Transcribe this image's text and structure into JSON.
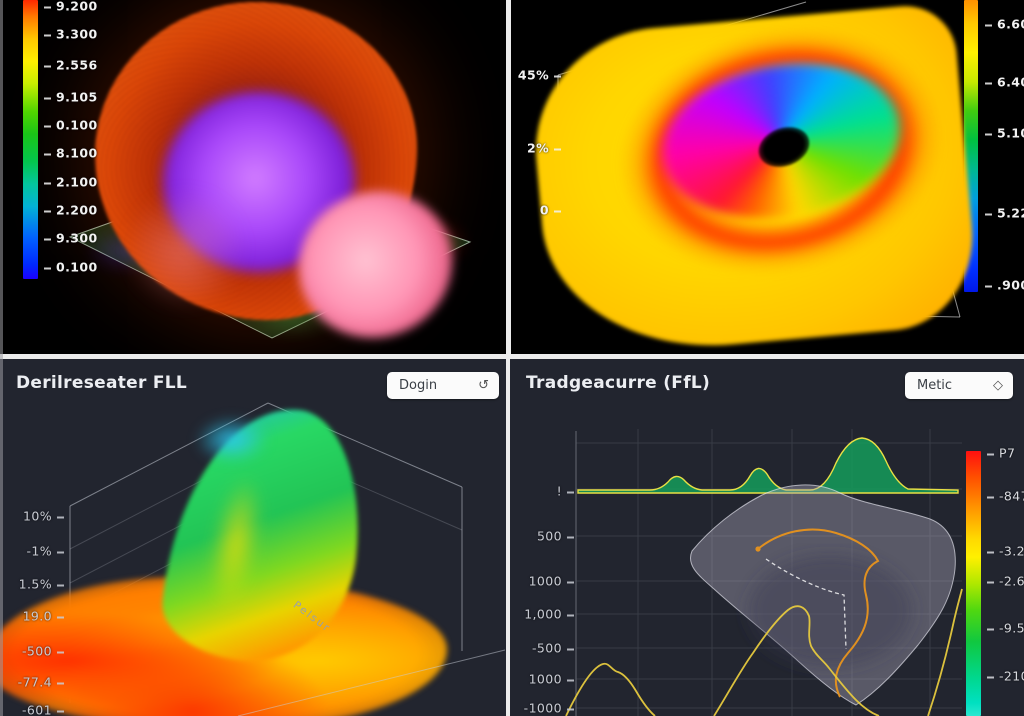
{
  "panels": {
    "top_left": {
      "colorbar_ticks": [
        "9.200",
        "3.300",
        "2.556",
        "9.105",
        "0.100",
        "8.100",
        "2.100",
        "2.200",
        "9.300",
        "0.100"
      ]
    },
    "top_right": {
      "y_ticks": [
        "45%",
        "2%",
        "0"
      ],
      "colorbar_ticks": [
        "6.60",
        "6.40",
        "5.10",
        "5.22",
        ".900"
      ]
    },
    "bottom_left": {
      "title": "Derilreseater FLL",
      "dropdown_value": "Dogin",
      "dropdown_icon": "↺",
      "y_ticks": [
        "10%",
        "-1%",
        "1.5%",
        "19.0",
        "-500",
        "-77.4",
        "-601"
      ],
      "axis_label": "Pelsur"
    },
    "bottom_right": {
      "title": "Tradgeacurre (FfL)",
      "dropdown_value": "Metic",
      "dropdown_icon": "◇",
      "y_ticks": [
        "!",
        "500",
        "1000",
        "1,000",
        "-500",
        "1000",
        "-1000"
      ],
      "colorbar_ticks": [
        "P7",
        "-847",
        "-3.23",
        "-2.60",
        "-9.50",
        "-210"
      ]
    }
  },
  "chart_data": [
    {
      "type": "heatmap",
      "panel": "top-left",
      "subtype": "3d-surface",
      "description": "Orange-red torus shell with violet glowing core and pink lobe, on translucent green base plane, black background",
      "colorbar_ticks": [
        "9.200",
        "3.300",
        "2.556",
        "9.105",
        "0.100",
        "8.100",
        "2.100",
        "2.200",
        "9.300",
        "0.100"
      ],
      "colorbar_colors_top_to_bottom": [
        "#ff2800",
        "#fff000",
        "#18c818",
        "#00c8a0",
        "#1c00ff"
      ]
    },
    {
      "type": "heatmap",
      "panel": "top-right",
      "subtype": "3d-surface",
      "description": "Yellow draped sheet with rainbow spiral vortex (red, magenta, blue, cyan, green) around a black center hole",
      "y_ticks": [
        "45%",
        "2%",
        "0"
      ],
      "colorbar_ticks": [
        "6.60",
        "6.40",
        "5.10",
        "5.22",
        ".900"
      ],
      "colorbar_colors_top_to_bottom": [
        "#ff9000",
        "#fff000",
        "#00c040",
        "#0064ff",
        "#0018e8"
      ]
    },
    {
      "type": "heatmap",
      "panel": "bottom-left",
      "subtype": "3d-surface",
      "title": "Derilreseater FLL",
      "description": "Turbulent orange-red base surface with cyan-green curved crest rising inside a wireframe box",
      "y_ticks": [
        "10%",
        "-1%",
        "1.5%",
        "19.0",
        "-500",
        "-77.4",
        "-601"
      ],
      "axis_label": "Pelsur"
    },
    {
      "type": "area",
      "panel": "bottom-right",
      "title": "Tradgeacurre (FfL)",
      "y_ticks": [
        "!",
        "500",
        "1000",
        "1,000",
        "-500",
        "1000",
        "-1000"
      ],
      "colorbar_ticks": [
        "P7",
        "-847",
        "-3.23",
        "-2.60",
        "-9.50",
        "-210"
      ],
      "grid": true,
      "series": [
        {
          "name": "green area bumps (baseline at '!' gridline)",
          "style": "area",
          "color": "#14985a",
          "points_xnorm_heightpx": [
            [
              0.0,
              0
            ],
            [
              0.22,
              0
            ],
            [
              0.28,
              18
            ],
            [
              0.33,
              0
            ],
            [
              0.45,
              0
            ],
            [
              0.5,
              28
            ],
            [
              0.56,
              0
            ],
            [
              0.66,
              0
            ],
            [
              0.78,
              52
            ],
            [
              0.9,
              0
            ],
            [
              1.0,
              0
            ]
          ]
        },
        {
          "name": "yellow line",
          "style": "line",
          "color": "#e6c93e",
          "points_xnorm_ynorm": [
            [
              0.0,
              0.0
            ],
            [
              0.09,
              0.18
            ],
            [
              0.13,
              0.15
            ],
            [
              0.22,
              0.0
            ],
            [
              0.38,
              0.0
            ],
            [
              0.55,
              0.37
            ],
            [
              0.63,
              0.33
            ],
            [
              0.7,
              0.17
            ],
            [
              0.78,
              0.0
            ],
            [
              0.93,
              0.0
            ],
            [
              1.0,
              0.44
            ]
          ]
        },
        {
          "name": "gray translucent surface patch with orange contour and white dashed path",
          "style": "polygon",
          "color": "rgba(168,162,182,0.42)"
        }
      ]
    }
  ]
}
